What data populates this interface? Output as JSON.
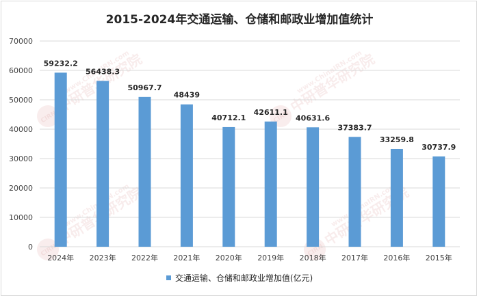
{
  "chart_data": {
    "type": "bar",
    "title": "2015-2024年交通运输、仓储和邮政业增加值统计",
    "categories": [
      "2024年",
      "2023年",
      "2022年",
      "2021年",
      "2020年",
      "2019年",
      "2018年",
      "2017年",
      "2016年",
      "2015年"
    ],
    "series": [
      {
        "name": "交通运输、仓储和邮政业增加值(亿元)",
        "values": [
          59232.2,
          56438.3,
          50967.7,
          48439,
          40712.1,
          42611.1,
          40631.6,
          37383.7,
          33259.8,
          30737.9
        ],
        "labels": [
          "59232.2",
          "56438.3",
          "50967.7",
          "48439",
          "40712.1",
          "42611.1",
          "40631.6",
          "37383.7",
          "33259.8",
          "30737.9"
        ]
      }
    ],
    "ylim": [
      0,
      70000
    ],
    "yticks": [
      "0",
      "10000",
      "20000",
      "30000",
      "40000",
      "50000",
      "60000",
      "70000"
    ],
    "grid": true,
    "legend": "bottom",
    "bar_color": "#5b9bd5"
  },
  "watermark": {
    "brand": "中研普华研究院",
    "url": "www.ChinaIRN.com",
    "logo_text": "CIRN"
  }
}
